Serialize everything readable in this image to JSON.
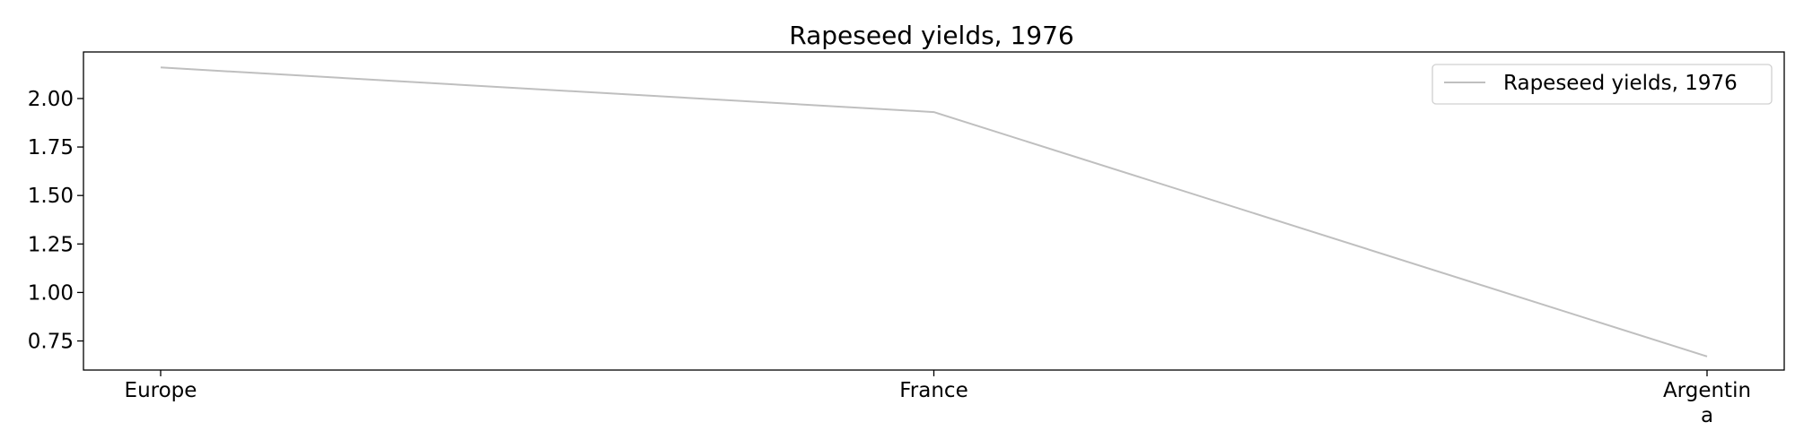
{
  "chart_data": {
    "type": "line",
    "title": "Rapeseed yields, 1976",
    "xlabel": "",
    "ylabel": "",
    "categories": [
      "Europe",
      "France",
      "Argentina"
    ],
    "category_label_lines": [
      [
        "Europe"
      ],
      [
        "France"
      ],
      [
        "Argentin",
        "a"
      ]
    ],
    "series": [
      {
        "name": "Rapeseed yields, 1976",
        "values": [
          2.16,
          1.93,
          0.67
        ],
        "color": "#bfbfbf"
      }
    ],
    "ylim": [
      0.6,
      2.24
    ],
    "yticks": [
      0.75,
      1.0,
      1.25,
      1.5,
      1.75,
      2.0
    ],
    "ytick_labels": [
      "0.75",
      "1.00",
      "1.25",
      "1.50",
      "1.75",
      "2.00"
    ],
    "grid": false,
    "legend_position": "top-right"
  }
}
